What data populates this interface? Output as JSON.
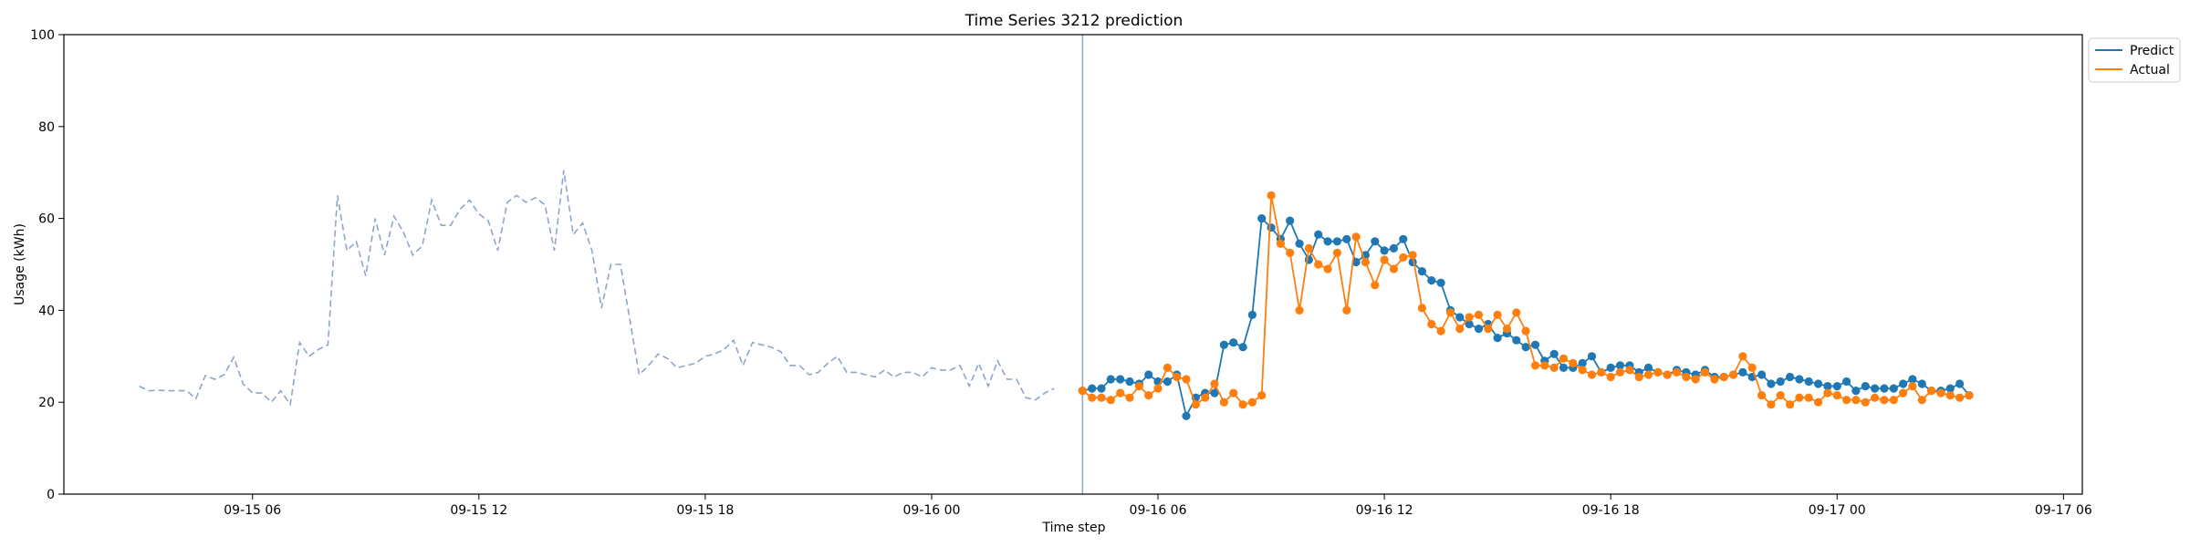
{
  "chart_data": {
    "type": "line",
    "title": "Time Series 3212 prediction",
    "xlabel": "Time step",
    "ylabel": "Usage (kWh)",
    "ylim": [
      0,
      100
    ],
    "xlim": [
      "2023-09-15 01:00",
      "2023-09-17 06:30"
    ],
    "yticks": [
      0,
      20,
      40,
      60,
      80,
      100
    ],
    "xticks": [
      {
        "t": "2023-09-15 06:00",
        "label": "09-15 06"
      },
      {
        "t": "2023-09-15 12:00",
        "label": "09-15 12"
      },
      {
        "t": "2023-09-15 18:00",
        "label": "09-15 18"
      },
      {
        "t": "2023-09-16 00:00",
        "label": "09-16 00"
      },
      {
        "t": "2023-09-16 06:00",
        "label": "09-16 06"
      },
      {
        "t": "2023-09-16 12:00",
        "label": "09-16 12"
      },
      {
        "t": "2023-09-16 18:00",
        "label": "09-16 18"
      },
      {
        "t": "2023-09-17 00:00",
        "label": "09-17 00"
      },
      {
        "t": "2023-09-17 06:00",
        "label": "09-17 06"
      }
    ],
    "grid": false,
    "legend_position": "top-right, outside",
    "forecast_start": "2023-09-16 04:00",
    "history": {
      "start": "2023-09-15 03:00",
      "step_minutes": 15,
      "color": "#8ea6c9",
      "style": "dashed",
      "values": [
        23.5,
        22.5,
        22.6,
        22.5,
        22.5,
        22.5,
        20.8,
        25.8,
        25.0,
        26.0,
        29.8,
        24.0,
        22.0,
        22.0,
        20.0,
        22.5,
        19.5,
        33.0,
        30.0,
        31.5,
        32.5,
        65.0,
        53.0,
        55.0,
        47.5,
        60.0,
        52.0,
        60.5,
        57.0,
        52.0,
        54.0,
        64.0,
        58.5,
        58.5,
        62.0,
        64.0,
        61.0,
        59.5,
        53.0,
        63.5,
        65.0,
        63.5,
        64.5,
        63.0,
        53.0,
        70.5,
        56.5,
        59.0,
        53.0,
        40.5,
        50.0,
        50.0,
        38.0,
        26.0,
        28.0,
        30.5,
        29.5,
        27.5,
        28.0,
        28.5,
        30.0,
        30.5,
        31.5,
        33.5,
        28.0,
        33.0,
        32.5,
        32.0,
        31.0,
        28.0,
        28.0,
        26.0,
        26.5,
        28.5,
        30.0,
        26.5,
        26.5,
        26.0,
        25.5,
        27.0,
        25.5,
        26.5,
        26.5,
        25.5,
        27.5,
        27.0,
        27.0,
        28.0,
        23.5,
        28.5,
        23.5,
        29.0,
        25.0,
        25.0,
        21.0,
        20.5,
        22.0,
        23.0
      ]
    },
    "series": [
      {
        "name": "Predict",
        "color": "#1f77b4",
        "start": "2023-09-16 04:00",
        "step_minutes": 15,
        "values": [
          22.5,
          23.0,
          23.0,
          25.0,
          25.0,
          24.5,
          24.0,
          26.0,
          24.5,
          24.5,
          26.0,
          17.0,
          21.0,
          22.0,
          22.0,
          32.5,
          33.0,
          32.0,
          39.0,
          60.0,
          58.0,
          55.5,
          59.5,
          54.5,
          51.0,
          56.5,
          55.0,
          55.0,
          55.5,
          50.5,
          52.0,
          55.0,
          53.0,
          53.5,
          55.5,
          50.5,
          48.5,
          46.5,
          46.0,
          40.0,
          38.5,
          37.0,
          36.0,
          37.0,
          34.0,
          35.0,
          33.5,
          32.0,
          32.5,
          29.0,
          30.5,
          27.5,
          27.5,
          28.5,
          30.0,
          26.5,
          27.5,
          28.0,
          28.0,
          26.5,
          27.5,
          26.5,
          26.0,
          27.0,
          26.5,
          26.0,
          27.0,
          25.5,
          25.5,
          26.0,
          26.5,
          25.5,
          26.0,
          24.0,
          24.5,
          25.5,
          25.0,
          24.5,
          24.0,
          23.5,
          23.5,
          24.5,
          22.5,
          23.5,
          23.0,
          23.0,
          23.0,
          24.0,
          25.0,
          24.0,
          22.5,
          22.5,
          23.0,
          24.0,
          21.5
        ]
      },
      {
        "name": "Actual",
        "color": "#ff7f0e",
        "start": "2023-09-16 04:00",
        "step_minutes": 15,
        "values": [
          22.5,
          21.0,
          21.0,
          20.5,
          22.0,
          21.0,
          23.5,
          21.5,
          23.0,
          27.5,
          25.5,
          25.0,
          19.5,
          21.0,
          24.0,
          20.0,
          22.0,
          19.5,
          20.0,
          21.5,
          65.0,
          54.5,
          52.5,
          40.0,
          53.5,
          50.0,
          49.0,
          52.5,
          40.0,
          56.0,
          50.5,
          45.5,
          51.0,
          49.0,
          51.5,
          52.0,
          40.5,
          37.0,
          35.5,
          39.5,
          36.0,
          38.5,
          39.0,
          36.0,
          39.0,
          36.0,
          39.5,
          35.5,
          28.0,
          28.0,
          27.5,
          29.5,
          28.5,
          27.0,
          26.0,
          26.5,
          25.5,
          26.5,
          27.0,
          25.5,
          26.0,
          26.5,
          26.0,
          26.5,
          25.5,
          25.0,
          26.5,
          25.0,
          25.5,
          26.0,
          30.0,
          27.5,
          21.5,
          19.5,
          21.5,
          19.5,
          21.0,
          21.0,
          20.0,
          22.0,
          21.5,
          20.5,
          20.5,
          20.0,
          21.0,
          20.5,
          20.5,
          22.0,
          23.5,
          20.5,
          22.5,
          22.0,
          21.5,
          21.0,
          21.5
        ]
      }
    ]
  }
}
